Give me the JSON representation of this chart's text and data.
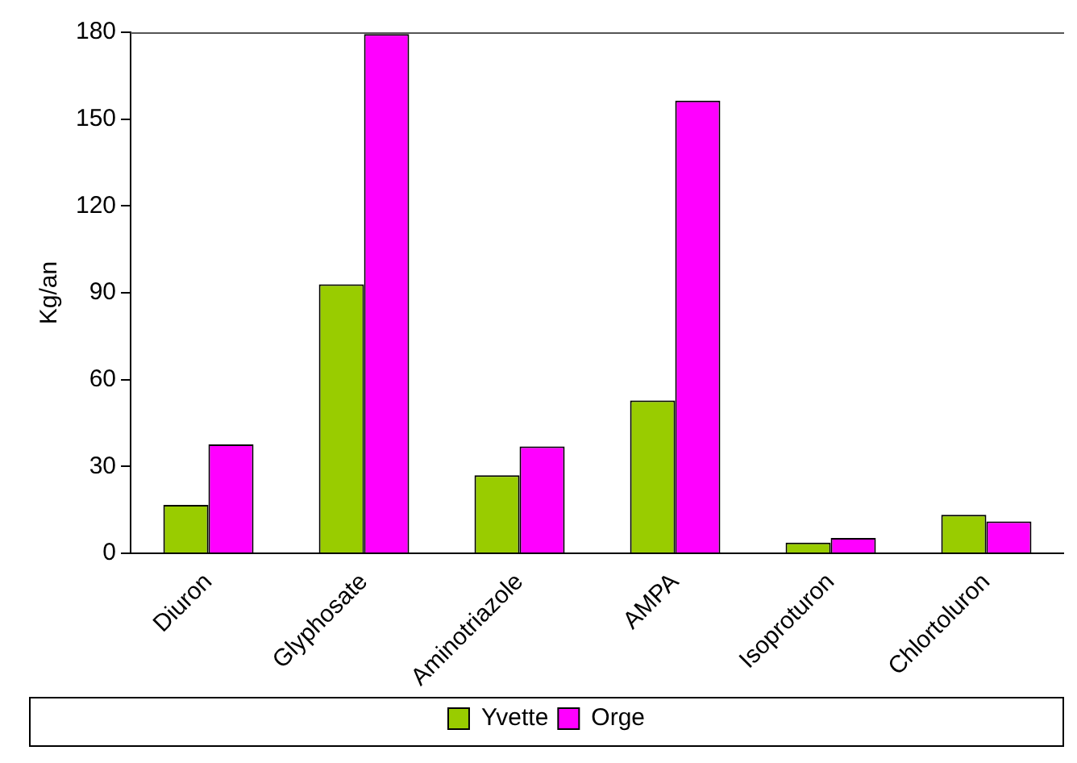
{
  "chart_data": {
    "type": "bar",
    "ylabel": "Kg/an",
    "categories": [
      "Diuron",
      "Glyphosate",
      "Aminotriazole",
      "AMPA",
      "Isoproturon",
      "Chlortoluron"
    ],
    "series": [
      {
        "name": "Yvette",
        "color": "#99cc00",
        "values": [
          16.7,
          92.9,
          27,
          52.8,
          3.7,
          13.3
        ]
      },
      {
        "name": "Orge",
        "color": "#ff00ff",
        "values": [
          37.6,
          179.4,
          36.9,
          156.4,
          5.3,
          11
        ]
      }
    ],
    "ylim": [
      0,
      180
    ],
    "yticks": [
      0,
      30,
      60,
      90,
      120,
      150,
      180
    ],
    "grid": false,
    "legend": "bottom"
  }
}
